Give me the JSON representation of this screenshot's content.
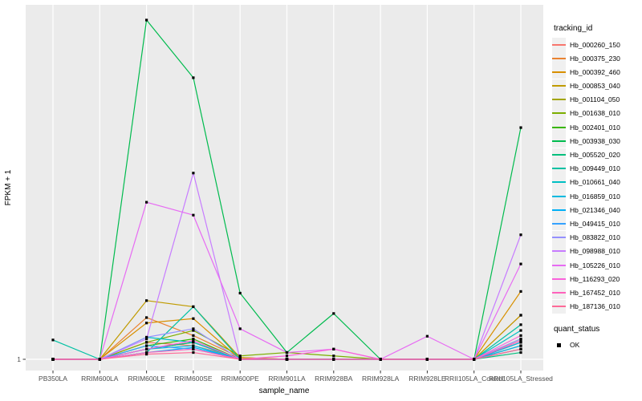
{
  "chart_data": {
    "type": "line",
    "title": "",
    "xlabel": "sample_name",
    "ylabel": "FPKM + 1",
    "categories": [
      "PB350LA",
      "RRIM600LA",
      "RRIM600LE",
      "RRIM600SE",
      "RRIM600PE",
      "RRIM901LA",
      "RRIM928BA",
      "RRIM928LA",
      "RRIM928LE",
      "RRII105LA_Control",
      "RRII105LA_Stressed"
    ],
    "y_axis": {
      "tick_labels": [
        "1"
      ],
      "scale_note": "only the value 1 is labeled on the axis; series values are normalized peak heights (0 = FPKM+1 = 1 baseline, 1 = tallest peak)"
    },
    "legend_title": "tracking_id",
    "quant_status": {
      "title": "quant_status",
      "items": [
        "OK"
      ],
      "marker": "black-square"
    },
    "legend_position": "right",
    "grid": "vertical-majors-only",
    "marker": "small-black-square",
    "series": [
      {
        "name": "Hb_000260_150",
        "color": "#F8766D",
        "values": [
          0,
          0,
          0.05,
          0.04,
          0.005,
          0,
          0,
          0,
          0,
          0,
          0.05
        ]
      },
      {
        "name": "Hb_000375_230",
        "color": "#EA8331",
        "values": [
          0,
          0,
          0.123,
          0.07,
          0.005,
          0,
          0,
          0,
          0,
          0,
          0.13
        ]
      },
      {
        "name": "Hb_000392_460",
        "color": "#D89000",
        "values": [
          0,
          0,
          0.107,
          0.12,
          0,
          0,
          0,
          0,
          0,
          0,
          0.2
        ]
      },
      {
        "name": "Hb_000853_040",
        "color": "#C09B00",
        "values": [
          0,
          0,
          0.173,
          0.155,
          0.005,
          0,
          0,
          0,
          0,
          0,
          0.13
        ]
      },
      {
        "name": "Hb_001104_050",
        "color": "#A3A500",
        "values": [
          0,
          0,
          0.03,
          0.05,
          0,
          0,
          0,
          0,
          0,
          0,
          0.04
        ]
      },
      {
        "name": "Hb_001638_010",
        "color": "#7CAE00",
        "values": [
          0,
          0,
          0.05,
          0.085,
          0.01,
          0.02,
          0.01,
          0,
          0,
          0,
          0.06
        ]
      },
      {
        "name": "Hb_002401_010",
        "color": "#39B600",
        "values": [
          0,
          0,
          0.04,
          0.06,
          0,
          0,
          0,
          0,
          0,
          0,
          0.03
        ]
      },
      {
        "name": "Hb_003938_030",
        "color": "#00BB4E",
        "values": [
          0,
          0,
          1.0,
          0.83,
          0.195,
          0.02,
          0.135,
          0,
          0,
          0,
          0.683
        ]
      },
      {
        "name": "Hb_005520_020",
        "color": "#00BF7D",
        "values": [
          0,
          0,
          0.03,
          0.05,
          0,
          0,
          0,
          0,
          0,
          0,
          0.02
        ]
      },
      {
        "name": "Hb_009449_010",
        "color": "#00C1A3",
        "values": [
          0.057,
          0,
          0.02,
          0.155,
          0,
          0,
          0,
          0,
          0,
          0,
          0.102
        ]
      },
      {
        "name": "Hb_010661_040",
        "color": "#00BFC4",
        "values": [
          0,
          0,
          0.065,
          0.05,
          0,
          0,
          0,
          0,
          0,
          0,
          0.085
        ]
      },
      {
        "name": "Hb_016859_010",
        "color": "#00BAE0",
        "values": [
          0,
          0,
          0.03,
          0.04,
          0,
          0,
          0,
          0,
          0,
          0,
          0.05
        ]
      },
      {
        "name": "Hb_021346_040",
        "color": "#00B0F6",
        "values": [
          0,
          0,
          0.02,
          0.035,
          0,
          0,
          0,
          0,
          0,
          0,
          0.04
        ]
      },
      {
        "name": "Hb_049415_010",
        "color": "#35A2FF",
        "values": [
          0,
          0,
          0.04,
          0.03,
          0,
          0,
          0,
          0,
          0,
          0,
          0.03
        ]
      },
      {
        "name": "Hb_083822_010",
        "color": "#9590FF",
        "values": [
          0,
          0,
          0.065,
          0.09,
          0,
          0,
          0,
          0,
          0,
          0,
          0.06
        ]
      },
      {
        "name": "Hb_098988_010",
        "color": "#C77CFF",
        "values": [
          0,
          0,
          0.06,
          0.549,
          0,
          0,
          0,
          0,
          0,
          0,
          0.367
        ]
      },
      {
        "name": "Hb_105226_010",
        "color": "#E76BF3",
        "values": [
          0,
          0,
          0.463,
          0.425,
          0.09,
          0.02,
          0.03,
          0,
          0.068,
          0,
          0.281
        ]
      },
      {
        "name": "Hb_116293_020",
        "color": "#FA62DB",
        "values": [
          0,
          0,
          0.03,
          0.055,
          0,
          0.01,
          0.03,
          0,
          0,
          0,
          0.07
        ]
      },
      {
        "name": "Hb_167452_010",
        "color": "#FF62BC",
        "values": [
          0,
          0,
          0.02,
          0.03,
          0,
          0,
          0,
          0,
          0,
          0,
          0.055
        ]
      },
      {
        "name": "Hb_187136_010",
        "color": "#FF6A98",
        "values": [
          0,
          0,
          0.015,
          0.02,
          0,
          0,
          0,
          0,
          0,
          0,
          0.03
        ]
      }
    ]
  },
  "colors": {
    "panel_bg": "#EBEBEB",
    "grid": "#FFFFFF",
    "axis_text": "#4D4D4D",
    "axis_title": "#000000",
    "tick_mark": "#333333",
    "marker": "#000000",
    "legend_key_bg": "#F0F0F0"
  }
}
